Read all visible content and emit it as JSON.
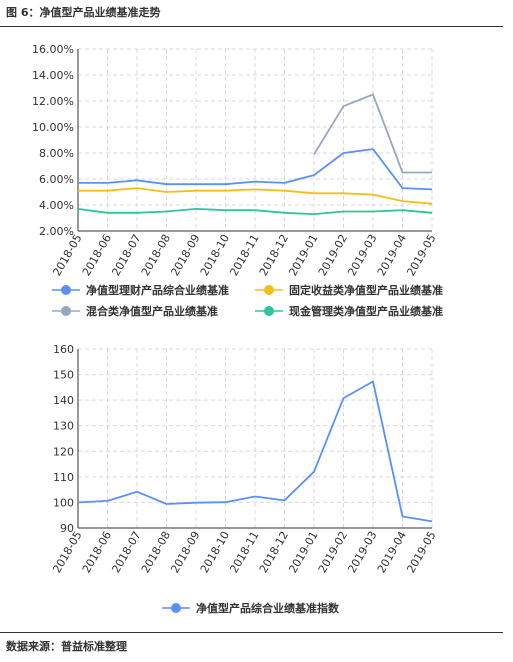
{
  "figure": {
    "title": "图 6：净值型产品业绩基准走势",
    "source": "数据来源：普益标准整理"
  },
  "chart_data": [
    {
      "type": "line",
      "x": [
        "2018-05",
        "2018-06",
        "2018-07",
        "2018-08",
        "2018-09",
        "2018-10",
        "2018-11",
        "2018-12",
        "2019-01",
        "2019-02",
        "2019-03",
        "2019-04",
        "2019-05"
      ],
      "ylim": [
        2.0,
        16.0
      ],
      "yticks": [
        "2.00%",
        "4.00%",
        "6.00%",
        "8.00%",
        "10.00%",
        "12.00%",
        "14.00%",
        "16.00%"
      ],
      "grid": true,
      "legend_position": "bottom",
      "series": [
        {
          "name": "净值型理财产品综合业绩基准",
          "color": "#5b8ff9",
          "values": [
            5.7,
            5.7,
            5.9,
            5.6,
            5.6,
            5.6,
            5.8,
            5.7,
            6.3,
            8.0,
            8.3,
            5.3,
            5.2
          ]
        },
        {
          "name": "固定收益类净值型产品业绩基准",
          "color": "#f6bd16",
          "values": [
            5.1,
            5.1,
            5.3,
            5.0,
            5.1,
            5.1,
            5.2,
            5.1,
            4.9,
            4.9,
            4.8,
            4.3,
            4.1
          ]
        },
        {
          "name": "混合类净值型产品业绩基准",
          "color": "#98a7c1",
          "values": [
            null,
            null,
            null,
            null,
            null,
            null,
            null,
            null,
            7.9,
            11.6,
            12.5,
            6.5,
            6.5
          ]
        },
        {
          "name": "现金管理类净值型产品业绩基准",
          "color": "#2cc59c",
          "values": [
            3.7,
            3.4,
            3.4,
            3.5,
            3.7,
            3.6,
            3.6,
            3.4,
            3.3,
            3.5,
            3.5,
            3.6,
            3.4
          ]
        }
      ]
    },
    {
      "type": "line",
      "x": [
        "2018-05",
        "2018-06",
        "2018-07",
        "2018-08",
        "2018-09",
        "2018-10",
        "2018-11",
        "2018-12",
        "2019-01",
        "2019-02",
        "2019-03",
        "2019-04",
        "2019-05"
      ],
      "ylim": [
        90,
        160
      ],
      "yticks": [
        "90",
        "100",
        "110",
        "120",
        "130",
        "140",
        "150",
        "160"
      ],
      "grid": true,
      "legend_position": "bottom",
      "series": [
        {
          "name": "净值型产品综合业绩基准指数",
          "color": "#5b8ff9",
          "values": [
            100.0,
            100.6,
            104.2,
            99.4,
            99.9,
            100.1,
            102.3,
            100.8,
            112.0,
            140.8,
            147.3,
            94.5,
            92.6
          ]
        }
      ]
    }
  ]
}
